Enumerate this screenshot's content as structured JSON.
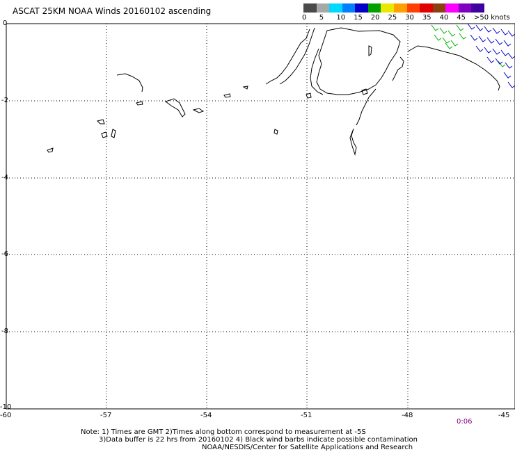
{
  "title": "ASCAT 25KM NOAA Winds 20160102 ascending",
  "legend": {
    "labels": [
      "0",
      "5",
      "10",
      "15",
      "20",
      "25",
      "30",
      "35",
      "40",
      "45",
      ">50 knots"
    ],
    "colors": [
      "#4a4a4a",
      "#a8a8a8",
      "#00d8ff",
      "#0080ff",
      "#0000c8",
      "#00a000",
      "#e8e800",
      "#ffa000",
      "#ff4000",
      "#e00000",
      "#8b4010",
      "#ff00ff",
      "#8000c0",
      "#4000a0"
    ]
  },
  "x_axis": {
    "ticks": [
      "-60",
      "-57",
      "-54",
      "-51",
      "-48",
      "-45"
    ]
  },
  "y_axis": {
    "ticks": [
      "0",
      "-2",
      "-4",
      "-6",
      "-8",
      "-10"
    ]
  },
  "time_label": "0:06",
  "notes": {
    "line1": "Note: 1) Times are GMT 2)Times along bottom correspond to measurement at -5S",
    "line2": "3)Data buffer is 22 hrs from 20160102 4) Black wind barbs indicate possible contamination",
    "line3": "NOAA/NESDIS/Center for Satellite Applications and Research"
  }
}
